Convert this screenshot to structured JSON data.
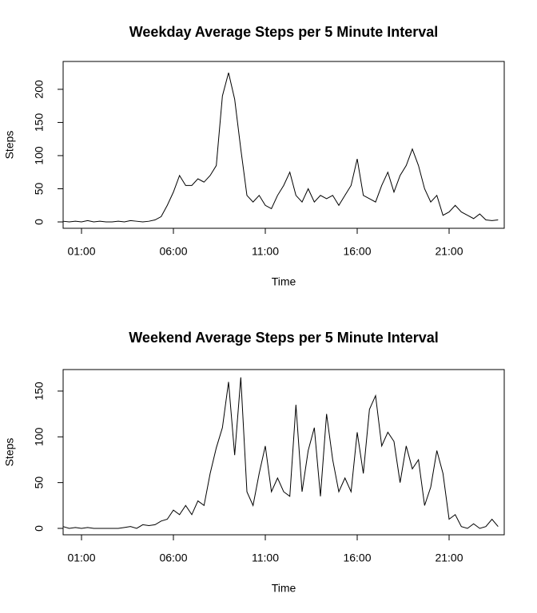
{
  "chart_data": [
    {
      "type": "line",
      "title": "Weekday Average Steps per 5 Minute Interval",
      "x_label": "Time",
      "y_label": "Steps",
      "x": [
        0,
        20,
        40,
        60,
        80,
        100,
        120,
        140,
        160,
        180,
        200,
        220,
        240,
        260,
        280,
        300,
        320,
        340,
        360,
        380,
        400,
        420,
        440,
        460,
        480,
        500,
        520,
        540,
        560,
        580,
        600,
        620,
        640,
        660,
        680,
        700,
        720,
        740,
        760,
        780,
        800,
        820,
        840,
        860,
        880,
        900,
        920,
        940,
        960,
        980,
        1000,
        1020,
        1040,
        1060,
        1080,
        1100,
        1120,
        1140,
        1160,
        1180,
        1200,
        1220,
        1240,
        1260,
        1280,
        1300,
        1320,
        1340,
        1360,
        1380,
        1400,
        1420
      ],
      "series": [
        {
          "name": "Weekday",
          "color": "#000000",
          "values": [
            1,
            0,
            1,
            0,
            2,
            0,
            1,
            0,
            0,
            1,
            0,
            2,
            1,
            0,
            1,
            3,
            8,
            25,
            45,
            70,
            55,
            55,
            65,
            60,
            70,
            85,
            190,
            225,
            185,
            110,
            40,
            30,
            40,
            25,
            20,
            40,
            55,
            75,
            40,
            30,
            50,
            30,
            40,
            35,
            40,
            25,
            40,
            55,
            95,
            40,
            35,
            30,
            55,
            75,
            45,
            70,
            85,
            110,
            85,
            50,
            30,
            40,
            10,
            15,
            25,
            15,
            10,
            5,
            12,
            3,
            2,
            3
          ]
        }
      ],
      "xlim": [
        0,
        1440
      ],
      "xticks": [
        {
          "value": 60,
          "label": "01:00"
        },
        {
          "value": 360,
          "label": "06:00"
        },
        {
          "value": 660,
          "label": "11:00"
        },
        {
          "value": 960,
          "label": "16:00"
        },
        {
          "value": 1260,
          "label": "21:00"
        }
      ],
      "ylim": [
        -9.6,
        242
      ],
      "yticks": [
        0,
        50,
        100,
        150,
        200
      ]
    },
    {
      "type": "line",
      "title": "Weekend Average Steps per 5 Minute Interval",
      "x_label": "Time",
      "y_label": "Steps",
      "x": [
        0,
        20,
        40,
        60,
        80,
        100,
        120,
        140,
        160,
        180,
        200,
        220,
        240,
        260,
        280,
        300,
        320,
        340,
        360,
        380,
        400,
        420,
        440,
        460,
        480,
        500,
        520,
        540,
        560,
        580,
        600,
        620,
        640,
        660,
        680,
        700,
        720,
        740,
        760,
        780,
        800,
        820,
        840,
        860,
        880,
        900,
        920,
        940,
        960,
        980,
        1000,
        1020,
        1040,
        1060,
        1080,
        1100,
        1120,
        1140,
        1160,
        1180,
        1200,
        1220,
        1240,
        1260,
        1280,
        1300,
        1320,
        1340,
        1360,
        1380,
        1400,
        1420
      ],
      "series": [
        {
          "name": "Weekend",
          "color": "#000000",
          "values": [
            2,
            0,
            1,
            0,
            1,
            0,
            0,
            0,
            0,
            0,
            1,
            2,
            0,
            4,
            3,
            4,
            8,
            10,
            20,
            15,
            25,
            15,
            30,
            25,
            60,
            88,
            110,
            160,
            80,
            165,
            40,
            25,
            60,
            90,
            40,
            55,
            40,
            35,
            135,
            40,
            85,
            110,
            35,
            125,
            75,
            40,
            55,
            40,
            105,
            60,
            130,
            145,
            90,
            105,
            95,
            50,
            90,
            65,
            75,
            25,
            45,
            85,
            60,
            10,
            15,
            2,
            0,
            5,
            0,
            2,
            10,
            2
          ]
        }
      ],
      "xlim": [
        0,
        1440
      ],
      "xticks": [
        {
          "value": 60,
          "label": "01:00"
        },
        {
          "value": 360,
          "label": "06:00"
        },
        {
          "value": 660,
          "label": "11:00"
        },
        {
          "value": 960,
          "label": "16:00"
        },
        {
          "value": 1260,
          "label": "21:00"
        }
      ],
      "ylim": [
        -7,
        173.5
      ],
      "yticks": [
        0,
        50,
        100,
        150
      ]
    }
  ]
}
